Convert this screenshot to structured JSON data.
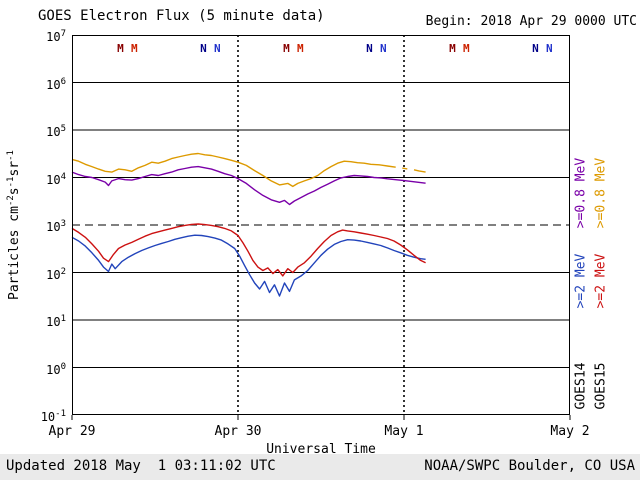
{
  "header": {
    "title": "GOES Electron Flux (5 minute data)",
    "begin": "Begin: 2018 Apr 29 0000 UTC"
  },
  "footer": {
    "updated": "Updated 2018 May  1 03:11:02 UTC",
    "credit": "NOAA/SWPC Boulder, CO USA"
  },
  "chart_data": {
    "type": "line",
    "title": "GOES Electron Flux (5 minute data)",
    "xlabel": "Universal Time",
    "ylabel": "Particles cm^-2 s^-1 sr^-1",
    "ylabel_parts": [
      {
        "t": "Particles cm"
      },
      {
        "sup": "-2"
      },
      {
        "t": "s"
      },
      {
        "sup": "-1"
      },
      {
        "t": "sr"
      },
      {
        "sup": "-1"
      }
    ],
    "x_unit": "days since 2018 Apr 29 0000 UTC",
    "xlim": [
      0,
      3
    ],
    "ylog_exp_range": [
      -1,
      7
    ],
    "x_ticks": [
      {
        "x": 0,
        "label": "Apr 29"
      },
      {
        "x": 1,
        "label": "Apr 30"
      },
      {
        "x": 2,
        "label": "May 1"
      },
      {
        "x": 3,
        "label": "May 2"
      }
    ],
    "y_tick_exps": [
      7,
      6,
      5,
      4,
      3,
      2,
      1,
      0,
      -1
    ],
    "grid": {
      "solid_exps": [
        6,
        5,
        4,
        2,
        1,
        0
      ],
      "dashed_exp": 3,
      "dotted_day_x": [
        1,
        2
      ]
    },
    "markers": [
      {
        "letter": "M",
        "x": 0.2917,
        "color": "#880000"
      },
      {
        "letter": "M",
        "x": 0.375,
        "color": "#cc2200"
      },
      {
        "letter": "N",
        "x": 0.7917,
        "color": "#000088"
      },
      {
        "letter": "N",
        "x": 0.875,
        "color": "#2233cc"
      },
      {
        "letter": "M",
        "x": 1.2917,
        "color": "#880000"
      },
      {
        "letter": "M",
        "x": 1.375,
        "color": "#cc2200"
      },
      {
        "letter": "N",
        "x": 1.7917,
        "color": "#000088"
      },
      {
        "letter": "N",
        "x": 1.875,
        "color": "#2233cc"
      },
      {
        "letter": "M",
        "x": 2.2917,
        "color": "#880000"
      },
      {
        "letter": "M",
        "x": 2.375,
        "color": "#cc2200"
      },
      {
        "letter": "N",
        "x": 2.7917,
        "color": "#000088"
      },
      {
        "letter": "N",
        "x": 2.875,
        "color": "#2233cc"
      }
    ],
    "series": [
      {
        "name": "GOES14 >=0.8 MeV",
        "satellite": "GOES14",
        "energy": ">=0.8 MeV",
        "color": "#7a00a8",
        "points": [
          [
            0.0,
            13000
          ],
          [
            0.04,
            11500
          ],
          [
            0.08,
            10500
          ],
          [
            0.12,
            10000
          ],
          [
            0.16,
            9000
          ],
          [
            0.2,
            8000
          ],
          [
            0.22,
            6800
          ],
          [
            0.24,
            8500
          ],
          [
            0.28,
            9500
          ],
          [
            0.32,
            9000
          ],
          [
            0.36,
            8800
          ],
          [
            0.4,
            9500
          ],
          [
            0.44,
            10500
          ],
          [
            0.48,
            11500
          ],
          [
            0.52,
            11000
          ],
          [
            0.56,
            12000
          ],
          [
            0.6,
            13000
          ],
          [
            0.64,
            14500
          ],
          [
            0.68,
            15500
          ],
          [
            0.72,
            16500
          ],
          [
            0.76,
            17000
          ],
          [
            0.8,
            16000
          ],
          [
            0.84,
            15000
          ],
          [
            0.88,
            13500
          ],
          [
            0.92,
            12000
          ],
          [
            0.96,
            11000
          ],
          [
            1.0,
            9500
          ],
          [
            1.05,
            7500
          ],
          [
            1.1,
            5500
          ],
          [
            1.15,
            4200
          ],
          [
            1.2,
            3400
          ],
          [
            1.25,
            3000
          ],
          [
            1.28,
            3300
          ],
          [
            1.31,
            2700
          ],
          [
            1.34,
            3200
          ],
          [
            1.38,
            3800
          ],
          [
            1.42,
            4500
          ],
          [
            1.46,
            5200
          ],
          [
            1.5,
            6200
          ],
          [
            1.54,
            7200
          ],
          [
            1.58,
            8500
          ],
          [
            1.62,
            9800
          ],
          [
            1.66,
            10500
          ],
          [
            1.7,
            11000
          ],
          [
            1.74,
            10800
          ],
          [
            1.78,
            10500
          ],
          [
            1.82,
            10000
          ],
          [
            1.86,
            9800
          ],
          [
            1.9,
            9400
          ],
          [
            1.95,
            9000
          ],
          [
            2.0,
            8600
          ],
          [
            2.05,
            8200
          ],
          [
            2.13,
            7600
          ]
        ]
      },
      {
        "name": "GOES15 >=0.8 MeV",
        "satellite": "GOES15",
        "energy": ">=0.8 MeV",
        "color": "#dd9a00",
        "points": [
          [
            0.0,
            24000
          ],
          [
            0.04,
            22000
          ],
          [
            0.08,
            19000
          ],
          [
            0.12,
            17000
          ],
          [
            0.16,
            15000
          ],
          [
            0.2,
            13500
          ],
          [
            0.24,
            13000
          ],
          [
            0.28,
            15000
          ],
          [
            0.32,
            14500
          ],
          [
            0.36,
            13500
          ],
          [
            0.4,
            16000
          ],
          [
            0.44,
            18000
          ],
          [
            0.48,
            21000
          ],
          [
            0.52,
            20000
          ],
          [
            0.56,
            22000
          ],
          [
            0.6,
            25000
          ],
          [
            0.64,
            27000
          ],
          [
            0.68,
            29000
          ],
          [
            0.72,
            31000
          ],
          [
            0.76,
            32000
          ],
          [
            0.8,
            30000
          ],
          [
            0.84,
            29000
          ],
          [
            0.88,
            27000
          ],
          [
            0.92,
            25000
          ],
          [
            0.96,
            23000
          ],
          [
            1.0,
            21000
          ],
          [
            1.05,
            18000
          ],
          [
            1.1,
            14000
          ],
          [
            1.15,
            11000
          ],
          [
            1.2,
            8500
          ],
          [
            1.25,
            7000
          ],
          [
            1.3,
            7500
          ],
          [
            1.33,
            6500
          ],
          [
            1.36,
            7500
          ],
          [
            1.4,
            8500
          ],
          [
            1.44,
            9500
          ],
          [
            1.48,
            11000
          ],
          [
            1.52,
            14000
          ],
          [
            1.56,
            17000
          ],
          [
            1.6,
            20000
          ],
          [
            1.64,
            22000
          ],
          [
            1.68,
            21500
          ],
          [
            1.72,
            20500
          ],
          [
            1.76,
            20000
          ],
          [
            1.8,
            19000
          ],
          [
            1.85,
            18500
          ],
          [
            1.9,
            17500
          ],
          [
            1.95,
            16500
          ],
          null,
          [
            1.99,
            15800
          ],
          [
            2.02,
            15200
          ],
          null,
          [
            2.06,
            14500
          ],
          [
            2.09,
            13800
          ],
          [
            2.13,
            13000
          ]
        ]
      },
      {
        "name": "GOES14 >=2 MeV",
        "satellite": "GOES14",
        "energy": ">=2 MeV",
        "color": "#2244bb",
        "points": [
          [
            0.0,
            550
          ],
          [
            0.04,
            460
          ],
          [
            0.08,
            360
          ],
          [
            0.12,
            260
          ],
          [
            0.16,
            180
          ],
          [
            0.19,
            130
          ],
          [
            0.22,
            105
          ],
          [
            0.24,
            150
          ],
          [
            0.26,
            120
          ],
          [
            0.3,
            170
          ],
          [
            0.34,
            210
          ],
          [
            0.38,
            250
          ],
          [
            0.42,
            290
          ],
          [
            0.46,
            330
          ],
          [
            0.5,
            370
          ],
          [
            0.54,
            410
          ],
          [
            0.58,
            450
          ],
          [
            0.62,
            500
          ],
          [
            0.66,
            540
          ],
          [
            0.7,
            580
          ],
          [
            0.74,
            610
          ],
          [
            0.78,
            600
          ],
          [
            0.82,
            570
          ],
          [
            0.86,
            530
          ],
          [
            0.9,
            480
          ],
          [
            0.94,
            400
          ],
          [
            0.98,
            320
          ],
          [
            1.01,
            220
          ],
          [
            1.04,
            140
          ],
          [
            1.07,
            90
          ],
          [
            1.1,
            60
          ],
          [
            1.13,
            45
          ],
          [
            1.16,
            65
          ],
          [
            1.19,
            38
          ],
          [
            1.22,
            55
          ],
          [
            1.25,
            32
          ],
          [
            1.28,
            60
          ],
          [
            1.31,
            40
          ],
          [
            1.34,
            70
          ],
          [
            1.38,
            85
          ],
          [
            1.42,
            110
          ],
          [
            1.46,
            160
          ],
          [
            1.5,
            230
          ],
          [
            1.54,
            310
          ],
          [
            1.58,
            390
          ],
          [
            1.62,
            450
          ],
          [
            1.66,
            490
          ],
          [
            1.7,
            480
          ],
          [
            1.74,
            460
          ],
          [
            1.78,
            430
          ],
          [
            1.82,
            400
          ],
          [
            1.86,
            370
          ],
          [
            1.9,
            330
          ],
          [
            1.94,
            290
          ],
          [
            1.98,
            260
          ],
          [
            2.02,
            230
          ],
          [
            2.06,
            210
          ],
          [
            2.1,
            195
          ],
          [
            2.13,
            190
          ]
        ]
      },
      {
        "name": "GOES15 >=2 MeV",
        "satellite": "GOES15",
        "energy": ">=2 MeV",
        "color": "#cc1111",
        "points": [
          [
            0.0,
            850
          ],
          [
            0.04,
            700
          ],
          [
            0.08,
            550
          ],
          [
            0.12,
            400
          ],
          [
            0.16,
            280
          ],
          [
            0.19,
            200
          ],
          [
            0.22,
            170
          ],
          [
            0.25,
            240
          ],
          [
            0.28,
            320
          ],
          [
            0.32,
            380
          ],
          [
            0.36,
            430
          ],
          [
            0.4,
            500
          ],
          [
            0.44,
            580
          ],
          [
            0.48,
            660
          ],
          [
            0.52,
            720
          ],
          [
            0.56,
            780
          ],
          [
            0.6,
            850
          ],
          [
            0.64,
            920
          ],
          [
            0.68,
            980
          ],
          [
            0.72,
            1030
          ],
          [
            0.76,
            1050
          ],
          [
            0.8,
            1020
          ],
          [
            0.84,
            980
          ],
          [
            0.88,
            920
          ],
          [
            0.92,
            850
          ],
          [
            0.96,
            750
          ],
          [
            1.0,
            600
          ],
          [
            1.03,
            420
          ],
          [
            1.06,
            280
          ],
          [
            1.09,
            180
          ],
          [
            1.12,
            130
          ],
          [
            1.15,
            110
          ],
          [
            1.18,
            125
          ],
          [
            1.21,
            95
          ],
          [
            1.24,
            115
          ],
          [
            1.27,
            85
          ],
          [
            1.3,
            120
          ],
          [
            1.33,
            100
          ],
          [
            1.36,
            130
          ],
          [
            1.4,
            160
          ],
          [
            1.44,
            220
          ],
          [
            1.48,
            320
          ],
          [
            1.52,
            450
          ],
          [
            1.56,
            600
          ],
          [
            1.6,
            720
          ],
          [
            1.63,
            780
          ],
          [
            1.66,
            750
          ],
          [
            1.7,
            720
          ],
          [
            1.74,
            680
          ],
          [
            1.78,
            640
          ],
          [
            1.82,
            600
          ],
          [
            1.86,
            560
          ],
          [
            1.9,
            520
          ],
          [
            1.94,
            460
          ],
          [
            1.98,
            380
          ],
          [
            2.02,
            300
          ],
          [
            2.06,
            230
          ],
          [
            2.1,
            180
          ],
          [
            2.13,
            160
          ]
        ]
      }
    ],
    "legend": {
      "columns": [
        {
          "sat": "GOES14",
          "x": 581,
          "sat_cy": 386,
          "energies": [
            {
              "label": ">=0.8 MeV",
              "color": "#7a00a8",
              "cy": 193
            },
            {
              "label": ">=2 MeV",
              "color": "#2244bb",
              "cy": 281
            }
          ]
        },
        {
          "sat": "GOES15",
          "x": 601,
          "sat_cy": 386,
          "energies": [
            {
              "label": ">=0.8 MeV",
              "color": "#dd9a00",
              "cy": 193
            },
            {
              "label": ">=2 MeV",
              "color": "#cc1111",
              "cy": 281
            }
          ]
        }
      ]
    },
    "threshold_flux": 1000,
    "legend_position": "right",
    "grid_on": true
  }
}
